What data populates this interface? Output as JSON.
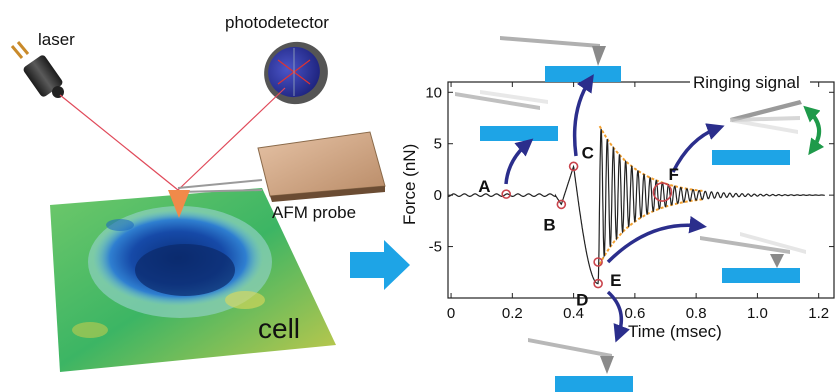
{
  "left_panel": {
    "laser_label": "laser",
    "photodetector_label": "photodetector",
    "probe_label": "AFM probe",
    "cell_label": "cell"
  },
  "chart_data": {
    "type": "line",
    "xlabel": "Time (msec)",
    "ylabel": "Force (nN)",
    "xlim": [
      -0.01,
      1.25
    ],
    "ylim": [
      -10,
      11
    ],
    "xticks": [
      0,
      0.2,
      0.4,
      0.6,
      0.8,
      1.0,
      1.2
    ],
    "xtick_labels": [
      "0",
      "0.2",
      "0.4",
      "0.6",
      "0.8",
      "1.0",
      "1.2"
    ],
    "yticks": [
      -5,
      0,
      5,
      10
    ],
    "ytick_labels": [
      "-5",
      "0",
      "5",
      "10"
    ],
    "annotation": "Ringing signal",
    "points": [
      {
        "label": "A",
        "x": 0.18,
        "y": 0.1
      },
      {
        "label": "B",
        "x": 0.36,
        "y": -0.9
      },
      {
        "label": "C",
        "x": 0.4,
        "y": 2.8
      },
      {
        "label": "D",
        "x": 0.48,
        "y": -8.6
      },
      {
        "label": "E",
        "x": 0.48,
        "y": -6.5
      },
      {
        "label": "F",
        "x": 0.69,
        "y": 0.3
      }
    ],
    "ringing": {
      "start": 0.48,
      "end": 1.22,
      "amplitude_start": 7.0,
      "decay_tau": 0.12,
      "period": 0.02
    }
  },
  "colors": {
    "accent_blue": "#1ea4e6",
    "arrow_navy": "#2b2e8c",
    "envelope": "#f2a030",
    "marker": "#c9444c",
    "green_arrow": "#1f9a4a"
  }
}
